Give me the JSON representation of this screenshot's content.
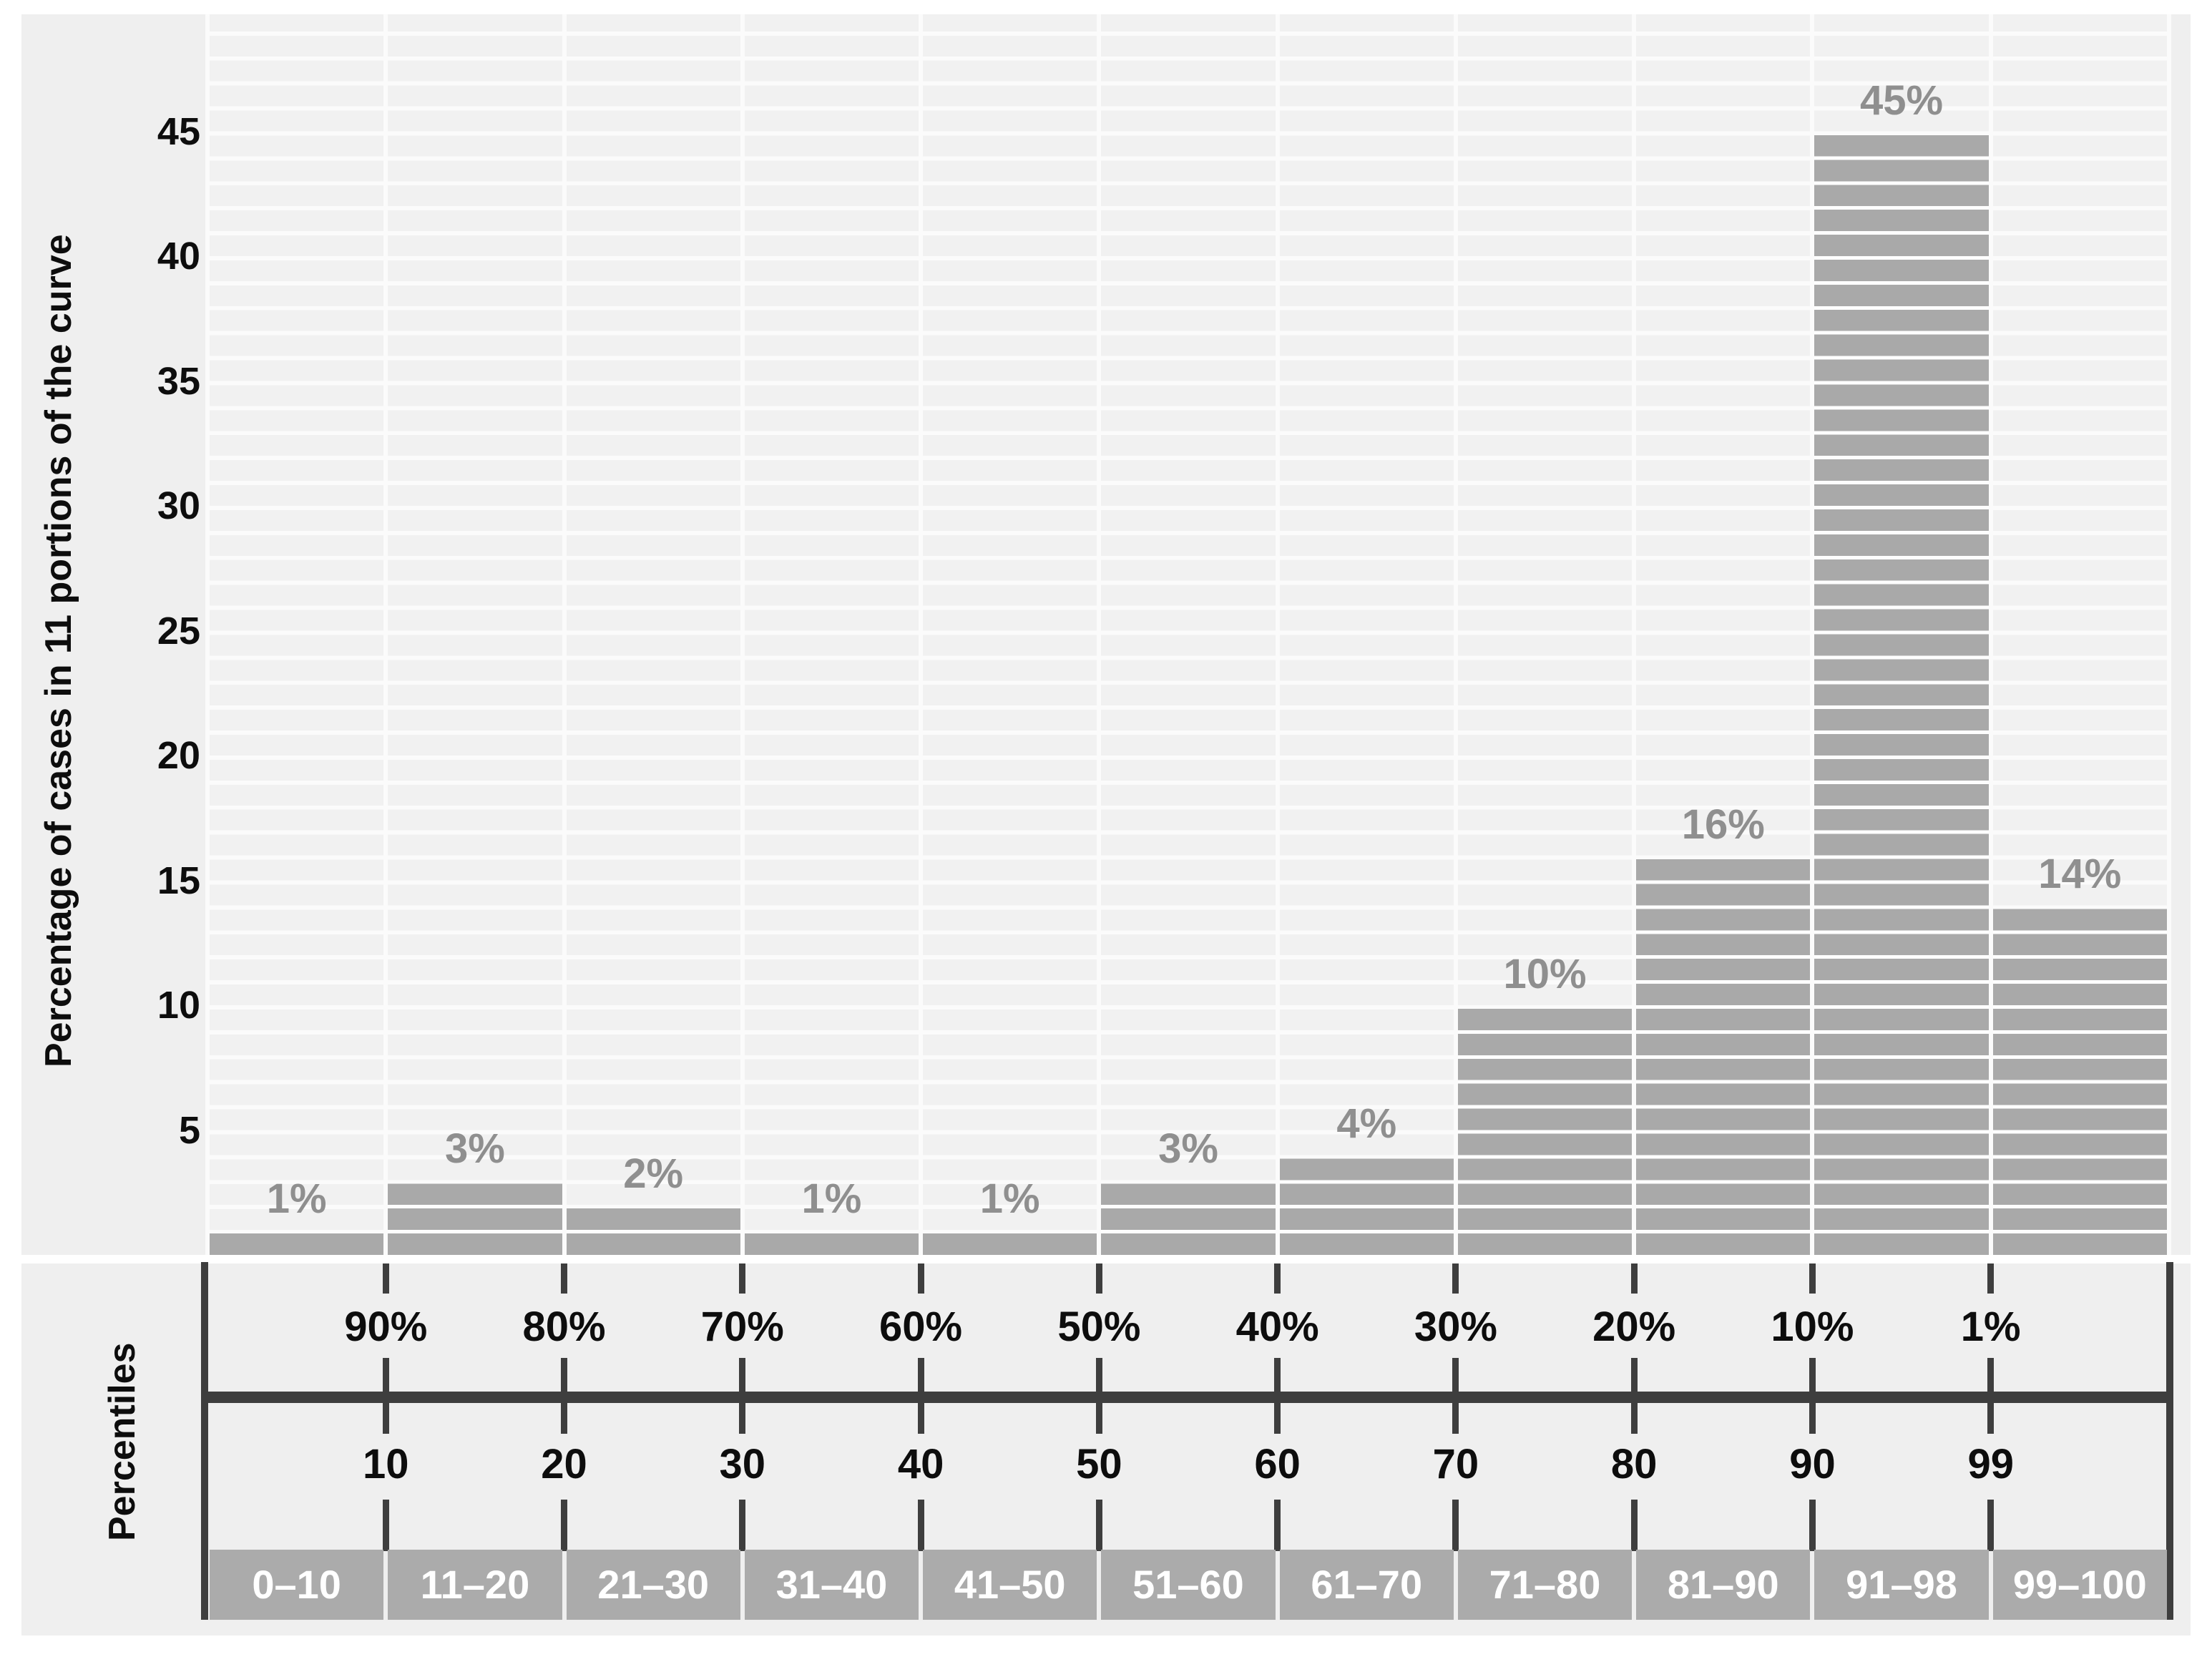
{
  "chart_data": {
    "type": "bar",
    "title": "",
    "ylabel": "Percentage of cases in 11 portions of the curve",
    "xlabel": "Percentiles",
    "categories": [
      "0–10",
      "11–20",
      "21–30",
      "31–40",
      "41–50",
      "51–60",
      "61–70",
      "71–80",
      "81–90",
      "91–98",
      "99–100"
    ],
    "values": [
      1,
      3,
      2,
      1,
      1,
      3,
      4,
      10,
      16,
      45,
      14
    ],
    "bar_labels": [
      "1%",
      "3%",
      "2%",
      "1%",
      "1%",
      "3%",
      "4%",
      "10%",
      "16%",
      "45%",
      "14%"
    ],
    "y_ticks": [
      5,
      10,
      15,
      20,
      25,
      30,
      35,
      40,
      45
    ],
    "ylim": [
      0,
      49.5
    ],
    "x_axis_upper_labels": [
      "90%",
      "80%",
      "70%",
      "60%",
      "50%",
      "40%",
      "30%",
      "20%",
      "10%",
      "1%"
    ],
    "x_axis_lower_labels": [
      "10",
      "20",
      "30",
      "40",
      "50",
      "60",
      "70",
      "80",
      "90",
      "99"
    ],
    "grid": "horizontal unit stripes, white gridlines, bars segmented per unit",
    "legend": "none"
  },
  "colors": {
    "figure_bg": "#efefef",
    "stripe": "#f1f1f1",
    "gridline": "#fbfbfb",
    "bar": "#a9a9a9",
    "bar_segment_line": "#fdfdfd",
    "value_label": "#8f8f8f",
    "axis_line": "#3e3e3e",
    "box_fill": "#ababab",
    "box_text": "#ffffff"
  }
}
